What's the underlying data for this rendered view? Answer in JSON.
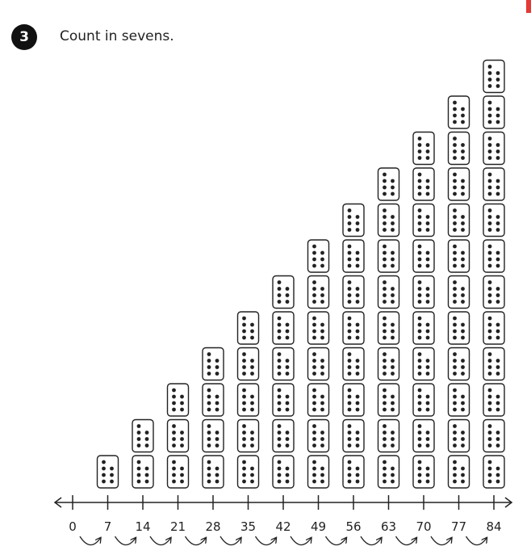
{
  "question": {
    "number": "3",
    "instruction": "Count in sevens."
  },
  "colors": {
    "badge": "#111111",
    "corner_mark": "#e53935",
    "ink": "#222222"
  },
  "number_line": {
    "labels": [
      "0",
      "7",
      "14",
      "21",
      "28",
      "35",
      "42",
      "49",
      "56",
      "63",
      "70",
      "77",
      "84"
    ],
    "step": 7
  },
  "dice_stacks": {
    "counts": [
      1,
      2,
      3,
      4,
      5,
      6,
      7,
      8,
      9,
      10,
      11,
      12
    ],
    "face": 7
  }
}
